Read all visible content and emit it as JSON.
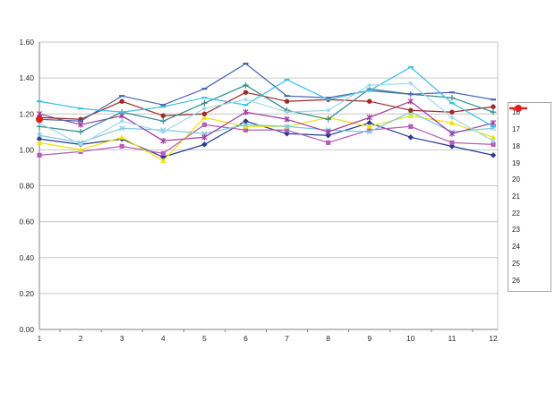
{
  "chart_data": {
    "type": "line",
    "title": "",
    "xlabel": "",
    "ylabel": "",
    "x": [
      1,
      2,
      3,
      4,
      5,
      6,
      7,
      8,
      9,
      10,
      11,
      12
    ],
    "x_tick_labels": [
      "1",
      "2",
      "3",
      "4",
      "5",
      "6",
      "7",
      "8",
      "9",
      "10",
      "11",
      "12"
    ],
    "ylim": [
      0.0,
      1.6
    ],
    "y_step": 0.2,
    "y_tick_labels": [
      "0.00",
      "0.20",
      "0.40",
      "0.60",
      "0.80",
      "1.00",
      "1.20",
      "1.40",
      "1.60"
    ],
    "grid": true,
    "legend_position": "right",
    "series": [
      {
        "name": "16",
        "color": "#2a3b8f",
        "marker": "diamond",
        "thick": false,
        "values": [
          1.06,
          1.03,
          1.06,
          0.96,
          1.03,
          1.16,
          1.09,
          1.08,
          1.15,
          1.07,
          1.02,
          0.97
        ]
      },
      {
        "name": "17",
        "color": "#b85cb8",
        "marker": "square",
        "thick": false,
        "values": [
          0.97,
          0.99,
          1.02,
          0.98,
          1.14,
          1.11,
          1.11,
          1.04,
          1.11,
          1.13,
          1.04,
          1.03
        ]
      },
      {
        "name": "18",
        "color": "#ece40e",
        "marker": "triangle",
        "thick": false,
        "values": [
          1.04,
          1.0,
          1.07,
          0.94,
          1.18,
          1.13,
          1.13,
          1.18,
          1.13,
          1.19,
          1.15,
          1.07
        ]
      },
      {
        "name": "19",
        "color": "#7ec8e3",
        "marker": "x",
        "thick": false,
        "values": [
          1.08,
          1.04,
          1.12,
          1.11,
          1.09,
          1.14,
          1.13,
          1.11,
          1.1,
          1.21,
          1.1,
          1.12
        ]
      },
      {
        "name": "20",
        "color": "#a23ca2",
        "marker": "star",
        "thick": false,
        "values": [
          1.2,
          1.14,
          1.19,
          1.05,
          1.07,
          1.21,
          1.17,
          1.1,
          1.18,
          1.27,
          1.09,
          1.15
        ]
      },
      {
        "name": "21",
        "color": "#9e2b2b",
        "marker": "circle",
        "thick": false,
        "values": [
          1.18,
          1.17,
          1.27,
          1.19,
          1.2,
          1.32,
          1.27,
          1.28,
          1.27,
          1.22,
          1.21,
          1.24
        ]
      },
      {
        "name": "22",
        "color": "#2f8e89",
        "marker": "plus",
        "thick": false,
        "values": [
          1.13,
          1.1,
          1.21,
          1.16,
          1.26,
          1.36,
          1.22,
          1.17,
          1.34,
          1.31,
          1.29,
          1.21
        ]
      },
      {
        "name": "23",
        "color": "#4a66ac",
        "marker": "dash",
        "thick": false,
        "values": [
          1.17,
          1.16,
          1.3,
          1.25,
          1.34,
          1.48,
          1.3,
          1.29,
          1.33,
          1.31,
          1.32,
          1.28
        ]
      },
      {
        "name": "24",
        "color": "#3fbee8",
        "marker": "dash",
        "thick": false,
        "values": [
          1.27,
          1.23,
          1.21,
          1.24,
          1.29,
          1.25,
          1.39,
          1.28,
          1.33,
          1.46,
          1.26,
          1.13
        ]
      },
      {
        "name": "25",
        "color": "#a3d8e8",
        "marker": "diamond-small",
        "thick": false,
        "values": [
          1.15,
          1.03,
          1.16,
          1.1,
          1.23,
          1.28,
          1.21,
          1.22,
          1.36,
          1.37,
          1.18,
          1.05
        ]
      },
      {
        "name": "26",
        "color": "#e02020",
        "marker": "circle",
        "thick": true,
        "values": [
          1.17,
          null,
          null,
          null,
          null,
          null,
          null,
          null,
          null,
          null,
          null,
          null
        ]
      }
    ],
    "colors": {
      "gridline": "#c6c6c6",
      "axis": "#808080",
      "tick_text": "#262626",
      "plot_bg": "#ffffff",
      "legend_border": "#a6a6a6"
    }
  }
}
